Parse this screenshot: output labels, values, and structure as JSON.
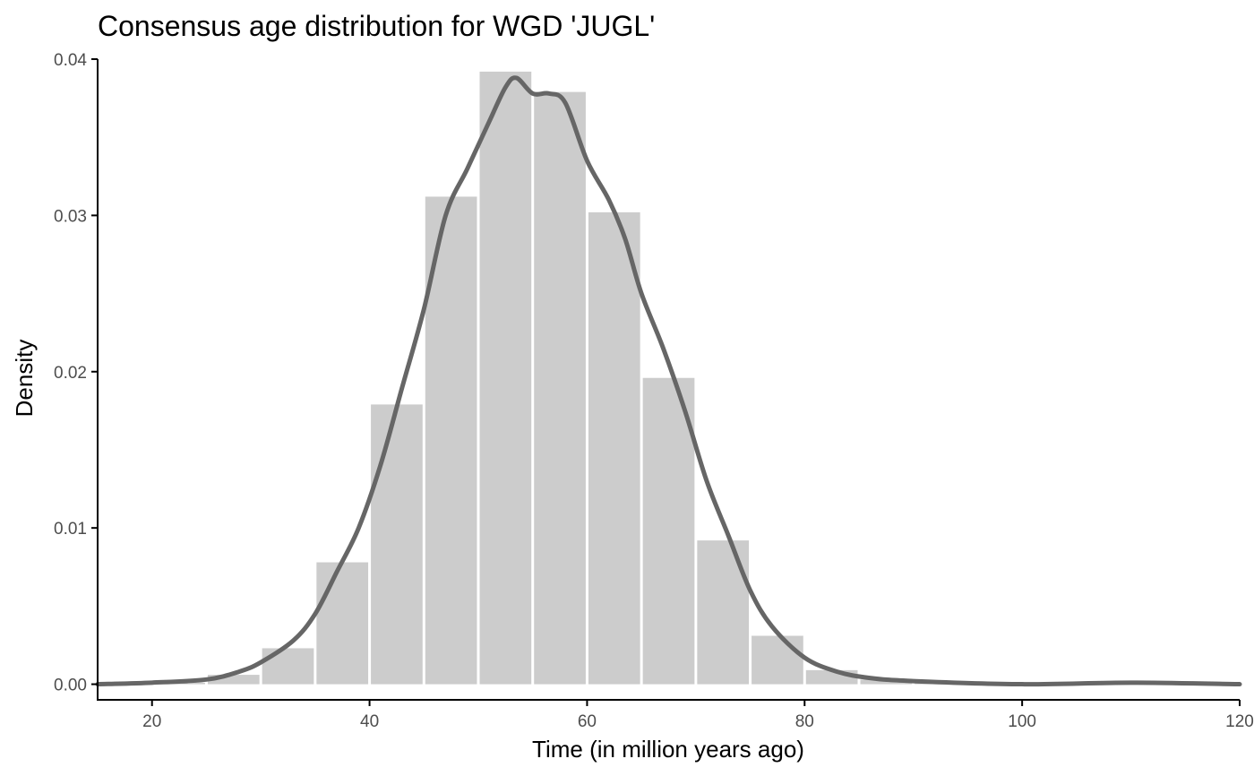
{
  "chart_data": {
    "type": "bar",
    "title": "Consensus age distribution for WGD 'JUGL'",
    "xlabel": "Time (in million years ago)",
    "ylabel": "Density",
    "xlim": [
      15,
      120
    ],
    "ylim": [
      -0.001,
      0.04
    ],
    "x_ticks": [
      20,
      40,
      60,
      80,
      100,
      120
    ],
    "x_tick_labels": [
      "20",
      "40",
      "60",
      "80",
      "100",
      "120"
    ],
    "y_ticks": [
      0,
      0.01,
      0.02,
      0.03,
      0.04
    ],
    "y_tick_labels": [
      "0.00",
      "0.01",
      "0.02",
      "0.03",
      "0.04"
    ],
    "grid": false,
    "bar_color": "#cccccc",
    "curve_color": "#666666",
    "bins": [
      {
        "x0": 20,
        "x1": 25,
        "density": 0.0001
      },
      {
        "x0": 25,
        "x1": 30,
        "density": 0.0006
      },
      {
        "x0": 30,
        "x1": 35,
        "density": 0.0023
      },
      {
        "x0": 35,
        "x1": 40,
        "density": 0.0078
      },
      {
        "x0": 40,
        "x1": 45,
        "density": 0.0179
      },
      {
        "x0": 45,
        "x1": 50,
        "density": 0.0312
      },
      {
        "x0": 50,
        "x1": 55,
        "density": 0.0392
      },
      {
        "x0": 55,
        "x1": 60,
        "density": 0.0379
      },
      {
        "x0": 60,
        "x1": 65,
        "density": 0.0302
      },
      {
        "x0": 65,
        "x1": 70,
        "density": 0.0196
      },
      {
        "x0": 70,
        "x1": 75,
        "density": 0.0092
      },
      {
        "x0": 75,
        "x1": 80,
        "density": 0.0031
      },
      {
        "x0": 80,
        "x1": 85,
        "density": 0.0009
      },
      {
        "x0": 85,
        "x1": 90,
        "density": 0.0003
      },
      {
        "x0": 90,
        "x1": 95,
        "density": 0.0001
      }
    ],
    "density_curve": [
      [
        15,
        0.0
      ],
      [
        20,
        0.0001
      ],
      [
        25,
        0.0003
      ],
      [
        28,
        0.0008
      ],
      [
        30,
        0.0014
      ],
      [
        33,
        0.0028
      ],
      [
        35,
        0.0045
      ],
      [
        37,
        0.0072
      ],
      [
        39,
        0.01
      ],
      [
        41,
        0.014
      ],
      [
        43,
        0.019
      ],
      [
        45,
        0.024
      ],
      [
        47,
        0.03
      ],
      [
        49,
        0.033
      ],
      [
        51,
        0.036
      ],
      [
        52.5,
        0.0382
      ],
      [
        53.5,
        0.0388
      ],
      [
        55,
        0.0378
      ],
      [
        56.5,
        0.0378
      ],
      [
        58,
        0.0372
      ],
      [
        60,
        0.0335
      ],
      [
        62,
        0.031
      ],
      [
        63.5,
        0.0285
      ],
      [
        65,
        0.025
      ],
      [
        67,
        0.0215
      ],
      [
        69,
        0.0175
      ],
      [
        71,
        0.013
      ],
      [
        73,
        0.0095
      ],
      [
        75,
        0.006
      ],
      [
        77,
        0.0037
      ],
      [
        80,
        0.0017
      ],
      [
        83,
        0.0008
      ],
      [
        86,
        0.0004
      ],
      [
        90,
        0.0002
      ],
      [
        100,
        0.0
      ],
      [
        110,
        0.0001
      ],
      [
        120,
        0.0
      ]
    ]
  }
}
